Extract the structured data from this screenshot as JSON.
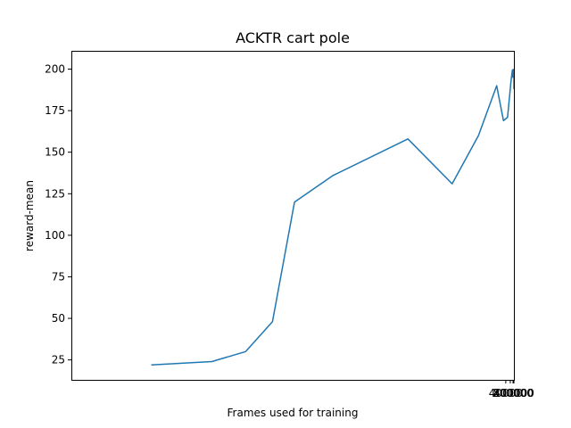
{
  "chart_data": {
    "type": "line",
    "title": "ACKTR cart pole",
    "xlabel": "Frames used for training",
    "ylabel": "reward-mean",
    "x_scale": "reciprocal",
    "xlim": [
      -1220,
      -2.6
    ],
    "ylim": [
      13,
      211
    ],
    "x_ticks": [
      {
        "value": 40000,
        "label": "40000"
      },
      {
        "value": 80000,
        "label": "80000"
      },
      {
        "value": 200000,
        "label": "200000"
      },
      {
        "value": 400000,
        "label": "400000"
      }
    ],
    "y_ticks": [
      {
        "value": 25,
        "label": "25"
      },
      {
        "value": 50,
        "label": "50"
      },
      {
        "value": 75,
        "label": "75"
      },
      {
        "value": 100,
        "label": "100"
      },
      {
        "value": 125,
        "label": "125"
      },
      {
        "value": 150,
        "label": "150"
      },
      {
        "value": 175,
        "label": "175"
      },
      {
        "value": 200,
        "label": "200"
      }
    ],
    "grid": false,
    "line_color": "#1f77b4",
    "series": [
      {
        "name": "",
        "points": [
          [
            1000,
            22
          ],
          [
            1200,
            24
          ],
          [
            1350,
            30
          ],
          [
            1500,
            48
          ],
          [
            1650,
            120
          ],
          [
            2000,
            136
          ],
          [
            3400,
            158
          ],
          [
            5800,
            131
          ],
          [
            10000,
            160
          ],
          [
            20000,
            190
          ],
          [
            32000,
            169
          ],
          [
            50000,
            171
          ],
          [
            96000,
            193
          ],
          [
            146000,
            199.5
          ],
          [
            192000,
            195
          ],
          [
            210000,
            196
          ],
          [
            240000,
            197
          ],
          [
            280000,
            198.5
          ],
          [
            310000,
            199.8
          ],
          [
            335000,
            199.2
          ],
          [
            355000,
            199.8
          ],
          [
            370000,
            197
          ],
          [
            385000,
            199.8
          ],
          [
            395000,
            199.8
          ],
          [
            402000,
            188
          ]
        ]
      }
    ]
  }
}
